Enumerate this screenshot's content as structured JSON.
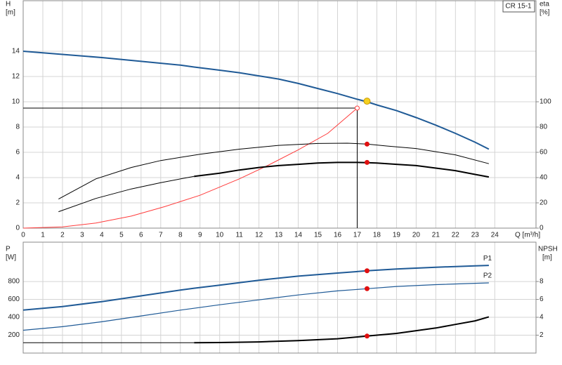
{
  "chart_data": [
    {
      "type": "line",
      "y_label": "H",
      "y_unit": "[m]",
      "y2_label": "eta",
      "y2_unit": "[%]",
      "x_label": "Q [m³/h]",
      "legend_text": "CR 15-1",
      "xlim": [
        0,
        26.1
      ],
      "xticks": [
        0,
        1,
        2,
        3,
        4,
        5,
        6,
        7,
        8,
        9,
        10,
        11,
        12,
        13,
        14,
        15,
        16,
        17,
        18,
        19,
        20,
        21,
        22,
        23,
        24
      ],
      "ylim": [
        0,
        18
      ],
      "yticks": [
        0,
        2,
        4,
        6,
        8,
        10,
        12,
        14
      ],
      "y2lim": [
        0,
        180
      ],
      "y2ticks": [
        0,
        20,
        40,
        60,
        80,
        100
      ],
      "grid": true,
      "series": [
        {
          "color": "#1f5a96",
          "width": 2,
          "x": [
            0,
            2,
            4,
            6,
            8,
            8.7,
            10,
            11,
            12,
            13,
            14,
            15,
            16,
            17,
            17.5,
            18,
            19,
            20,
            21,
            22,
            23,
            23.7
          ],
          "values": [
            14.0,
            13.75,
            13.5,
            13.2,
            12.9,
            12.75,
            12.5,
            12.3,
            12.05,
            11.8,
            11.45,
            11.05,
            10.65,
            10.2,
            10.0,
            9.75,
            9.3,
            8.75,
            8.15,
            7.5,
            6.8,
            6.25
          ]
        },
        {
          "color": "#ff3b3b",
          "width": 1,
          "axis": "y2",
          "x": [
            0,
            2,
            3.7,
            5.5,
            7.2,
            9,
            11,
            12.5,
            14,
            15.5,
            17
          ],
          "values": [
            0,
            1,
            4,
            9.5,
            17,
            26,
            39,
            50,
            62,
            75,
            95
          ]
        },
        {
          "color": "#000000",
          "width": 1,
          "x": [
            1.8,
            3.7,
            5.5,
            7,
            9,
            11,
            13,
            15,
            16.5,
            17.5,
            18.5,
            20,
            22,
            23.7
          ],
          "values": [
            2.3,
            3.9,
            4.8,
            5.35,
            5.85,
            6.25,
            6.55,
            6.7,
            6.72,
            6.65,
            6.5,
            6.3,
            5.8,
            5.1
          ]
        },
        {
          "color": "#000000",
          "width": 1,
          "x": [
            1.8,
            3.7,
            5.5,
            7,
            8.7
          ],
          "values": [
            1.3,
            2.35,
            3.1,
            3.6,
            4.1
          ]
        },
        {
          "color": "#000000",
          "width": 2,
          "x": [
            8.7,
            10,
            11,
            12,
            13,
            14,
            15,
            16,
            17,
            17.5,
            18,
            19,
            20,
            21,
            22,
            23,
            23.7
          ],
          "values": [
            4.1,
            4.35,
            4.6,
            4.8,
            4.95,
            5.05,
            5.15,
            5.2,
            5.2,
            5.18,
            5.15,
            5.05,
            4.95,
            4.75,
            4.55,
            4.25,
            4.05
          ]
        }
      ],
      "reference": {
        "x": 17,
        "y": 9.5
      },
      "markers": [
        {
          "x": 17.5,
          "y": 10.05,
          "color": "#f5d020"
        },
        {
          "x": 17,
          "y": 95,
          "color": "#ff3b3b",
          "axis": "y2",
          "hollow": true
        },
        {
          "x": 17.5,
          "y": 6.65,
          "color": "#e01010"
        },
        {
          "x": 17.5,
          "y": 5.2,
          "color": "#e01010"
        }
      ]
    },
    {
      "type": "line",
      "y_label": "P",
      "y_unit": "[W]",
      "y2_label": "NPSH",
      "y2_unit": "[m]",
      "xlim": [
        0,
        26.1
      ],
      "xticks": [
        0,
        1,
        2,
        3,
        4,
        5,
        6,
        7,
        8,
        9,
        10,
        11,
        12,
        13,
        14,
        15,
        16,
        17,
        18,
        19,
        20,
        21,
        22,
        23,
        24
      ],
      "ylim": [
        0,
        1240
      ],
      "yticks": [
        200,
        400,
        600,
        800
      ],
      "y2lim": [
        0,
        12.4
      ],
      "y2ticks": [
        2,
        4,
        6,
        8
      ],
      "grid": true,
      "series": [
        {
          "name": "P1",
          "color": "#1f5a96",
          "width": 2,
          "x": [
            0,
            2,
            4,
            6,
            8,
            8.7,
            10,
            12,
            14,
            16,
            17.5,
            19,
            21,
            23,
            23.7
          ],
          "values": [
            480,
            520,
            575,
            640,
            705,
            725,
            760,
            815,
            860,
            895,
            920,
            940,
            960,
            975,
            980
          ]
        },
        {
          "name": "P2",
          "color": "#1f5a96",
          "width": 1.2,
          "x": [
            0,
            2,
            4,
            6,
            8,
            10,
            12,
            14,
            16,
            17.5,
            19,
            21,
            23,
            23.7
          ],
          "values": [
            255,
            295,
            350,
            415,
            480,
            540,
            595,
            650,
            695,
            720,
            745,
            765,
            780,
            785
          ]
        },
        {
          "color": "#000000",
          "width": 1,
          "axis": "y2",
          "x": [
            0,
            8.7
          ],
          "values": [
            1.15,
            1.15
          ]
        },
        {
          "color": "#000000",
          "width": 2,
          "axis": "y2",
          "x": [
            8.7,
            10,
            12,
            14,
            16,
            17.5,
            19,
            20,
            21,
            22,
            23,
            23.7
          ],
          "values": [
            1.15,
            1.18,
            1.25,
            1.4,
            1.6,
            1.9,
            2.2,
            2.5,
            2.8,
            3.2,
            3.6,
            4.05
          ]
        }
      ],
      "markers": [
        {
          "x": 17.5,
          "y": 920,
          "color": "#e01010"
        },
        {
          "x": 17.5,
          "y": 720,
          "color": "#e01010"
        },
        {
          "x": 17.5,
          "y": 1.9,
          "color": "#e01010",
          "axis": "y2"
        }
      ]
    }
  ]
}
